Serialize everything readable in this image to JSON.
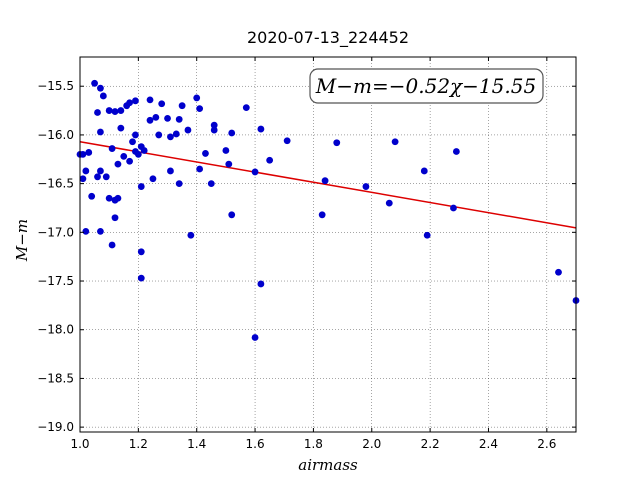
{
  "chart_data": {
    "type": "scatter",
    "title": "2020-07-13_224452",
    "xlabel": "airmass",
    "ylabel": "M−m",
    "xlim": [
      1.0,
      2.7
    ],
    "ylim": [
      -19.05,
      -15.2
    ],
    "y_inverted": true,
    "grid": true,
    "x_ticks": [
      1.0,
      1.2,
      1.4,
      1.6,
      1.8,
      2.0,
      2.2,
      2.4,
      2.6
    ],
    "x_tick_labels": [
      "1.0",
      "1.2",
      "1.4",
      "1.6",
      "1.8",
      "2.0",
      "2.2",
      "2.4",
      "2.6"
    ],
    "y_ticks": [
      -15.5,
      -16.0,
      -16.5,
      -17.0,
      -17.5,
      -18.0,
      -18.5,
      -19.0
    ],
    "y_tick_labels": [
      "−15.5",
      "−16.0",
      "−16.5",
      "−17.0",
      "−17.5",
      "−18.0",
      "−18.5",
      "−19.0"
    ],
    "annotation": "M−m=−0.52χ−15.55",
    "fit": {
      "slope": -0.52,
      "intercept": -15.55,
      "color": "#dd0000"
    },
    "point_color": "#0000cc",
    "series": [
      {
        "points": [
          [
            1.0,
            -16.2
          ],
          [
            1.01,
            -16.45
          ],
          [
            1.02,
            -16.37
          ],
          [
            1.01,
            -16.2
          ],
          [
            1.03,
            -16.18
          ],
          [
            1.04,
            -16.63
          ],
          [
            1.02,
            -16.99
          ],
          [
            1.05,
            -15.47
          ],
          [
            1.06,
            -15.77
          ],
          [
            1.07,
            -15.52
          ],
          [
            1.08,
            -15.6
          ],
          [
            1.07,
            -15.97
          ],
          [
            1.07,
            -16.37
          ],
          [
            1.06,
            -16.43
          ],
          [
            1.07,
            -16.99
          ],
          [
            1.09,
            -16.43
          ],
          [
            1.1,
            -15.75
          ],
          [
            1.1,
            -16.65
          ],
          [
            1.11,
            -16.14
          ],
          [
            1.12,
            -15.76
          ],
          [
            1.11,
            -17.13
          ],
          [
            1.12,
            -16.67
          ],
          [
            1.12,
            -16.85
          ],
          [
            1.13,
            -16.3
          ],
          [
            1.13,
            -16.65
          ],
          [
            1.14,
            -15.93
          ],
          [
            1.14,
            -15.75
          ],
          [
            1.15,
            -16.22
          ],
          [
            1.16,
            -15.7
          ],
          [
            1.17,
            -15.67
          ],
          [
            1.17,
            -16.27
          ],
          [
            1.18,
            -16.07
          ],
          [
            1.19,
            -15.65
          ],
          [
            1.19,
            -16.0
          ],
          [
            1.19,
            -16.17
          ],
          [
            1.2,
            -16.2
          ],
          [
            1.21,
            -16.12
          ],
          [
            1.21,
            -16.53
          ],
          [
            1.22,
            -16.16
          ],
          [
            1.21,
            -17.2
          ],
          [
            1.21,
            -17.47
          ],
          [
            1.24,
            -15.64
          ],
          [
            1.24,
            -15.85
          ],
          [
            1.25,
            -16.45
          ],
          [
            1.26,
            -15.82
          ],
          [
            1.27,
            -16.0
          ],
          [
            1.28,
            -15.68
          ],
          [
            1.3,
            -15.83
          ],
          [
            1.31,
            -16.02
          ],
          [
            1.31,
            -16.37
          ],
          [
            1.33,
            -15.99
          ],
          [
            1.34,
            -15.84
          ],
          [
            1.35,
            -15.7
          ],
          [
            1.34,
            -16.5
          ],
          [
            1.37,
            -15.95
          ],
          [
            1.38,
            -17.03
          ],
          [
            1.4,
            -15.62
          ],
          [
            1.41,
            -15.73
          ],
          [
            1.41,
            -16.35
          ],
          [
            1.43,
            -16.19
          ],
          [
            1.45,
            -16.5
          ],
          [
            1.46,
            -15.9
          ],
          [
            1.46,
            -15.95
          ],
          [
            1.5,
            -16.16
          ],
          [
            1.51,
            -16.3
          ],
          [
            1.52,
            -15.98
          ],
          [
            1.52,
            -16.82
          ],
          [
            1.57,
            -15.72
          ],
          [
            1.6,
            -16.38
          ],
          [
            1.62,
            -15.94
          ],
          [
            1.6,
            -18.08
          ],
          [
            1.62,
            -17.53
          ],
          [
            1.65,
            -16.26
          ],
          [
            1.71,
            -16.06
          ],
          [
            1.83,
            -16.82
          ],
          [
            1.84,
            -16.47
          ],
          [
            1.88,
            -16.08
          ],
          [
            1.98,
            -16.53
          ],
          [
            2.06,
            -16.7
          ],
          [
            2.08,
            -16.07
          ],
          [
            2.18,
            -16.37
          ],
          [
            2.19,
            -17.03
          ],
          [
            2.28,
            -16.75
          ],
          [
            2.29,
            -16.17
          ],
          [
            2.64,
            -17.41
          ],
          [
            2.7,
            -17.7
          ]
        ]
      }
    ]
  }
}
